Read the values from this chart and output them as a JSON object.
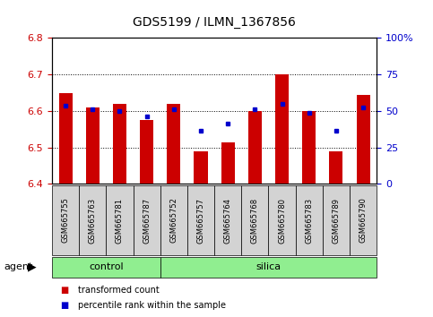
{
  "title": "GDS5199 / ILMN_1367856",
  "samples": [
    "GSM665755",
    "GSM665763",
    "GSM665781",
    "GSM665787",
    "GSM665752",
    "GSM665757",
    "GSM665764",
    "GSM665768",
    "GSM665780",
    "GSM665783",
    "GSM665789",
    "GSM665790"
  ],
  "groups": [
    "control",
    "control",
    "control",
    "control",
    "silica",
    "silica",
    "silica",
    "silica",
    "silica",
    "silica",
    "silica",
    "silica"
  ],
  "bar_values": [
    6.65,
    6.61,
    6.62,
    6.575,
    6.62,
    6.49,
    6.515,
    6.6,
    6.7,
    6.6,
    6.49,
    6.645
  ],
  "dot_values": [
    6.615,
    6.605,
    6.6,
    6.585,
    6.605,
    6.545,
    6.565,
    6.605,
    6.62,
    6.595,
    6.545,
    6.61
  ],
  "ylim": [
    6.4,
    6.8
  ],
  "yticks_left": [
    6.4,
    6.5,
    6.6,
    6.7,
    6.8
  ],
  "yticks_right": [
    0,
    25,
    50,
    75,
    100
  ],
  "bar_bottom": 6.4,
  "bar_color": "#cc0000",
  "dot_color": "#0000cc",
  "bar_width": 0.5,
  "group_color": "#90ee90",
  "cell_color": "#d3d3d3",
  "legend_items": [
    "transformed count",
    "percentile rank within the sample"
  ],
  "legend_colors": [
    "#cc0000",
    "#0000cc"
  ],
  "ylabel_left_color": "#cc0000",
  "ylabel_right_color": "#0000cc",
  "n_control": 4,
  "n_silica": 8
}
